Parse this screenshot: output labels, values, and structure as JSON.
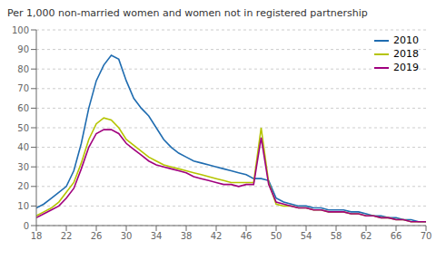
{
  "chart_data": {
    "type": "line",
    "title": "Per 1,000 non-married women and women not in registered partnership",
    "x": [
      18,
      19,
      20,
      21,
      22,
      23,
      24,
      25,
      26,
      27,
      28,
      29,
      30,
      31,
      32,
      33,
      34,
      35,
      36,
      37,
      38,
      39,
      40,
      41,
      42,
      43,
      44,
      45,
      46,
      47,
      48,
      49,
      50,
      51,
      52,
      53,
      54,
      55,
      56,
      57,
      58,
      59,
      60,
      61,
      62,
      63,
      64,
      65,
      66,
      67,
      68,
      69,
      70
    ],
    "series": [
      {
        "name": "2010",
        "color": "#1f6cb0",
        "values": [
          9,
          11,
          14,
          17,
          20,
          28,
          42,
          60,
          74,
          82,
          87,
          85,
          74,
          65,
          60,
          56,
          50,
          44,
          40,
          37,
          35,
          33,
          32,
          31,
          30,
          29,
          28,
          27,
          26,
          24,
          24,
          23,
          14,
          12,
          11,
          10,
          10,
          9,
          9,
          8,
          8,
          8,
          7,
          7,
          6,
          5,
          5,
          4,
          4,
          3,
          3,
          2,
          2
        ]
      },
      {
        "name": "2018",
        "color": "#b5c400",
        "values": [
          5,
          7,
          9,
          12,
          17,
          22,
          32,
          44,
          52,
          55,
          54,
          50,
          44,
          41,
          38,
          35,
          33,
          31,
          30,
          29,
          28,
          27,
          26,
          25,
          24,
          23,
          22,
          22,
          22,
          22,
          50,
          22,
          11,
          10,
          10,
          9,
          9,
          8,
          8,
          7,
          7,
          7,
          6,
          6,
          5,
          5,
          4,
          4,
          3,
          3,
          2,
          2,
          2
        ]
      },
      {
        "name": "2019",
        "color": "#a0007e",
        "values": [
          4,
          6,
          8,
          10,
          14,
          19,
          29,
          40,
          47,
          49,
          49,
          47,
          42,
          39,
          36,
          33,
          31,
          30,
          29,
          28,
          27,
          25,
          24,
          23,
          22,
          21,
          21,
          20,
          21,
          21,
          45,
          21,
          12,
          11,
          10,
          9,
          9,
          8,
          8,
          7,
          7,
          7,
          6,
          6,
          5,
          5,
          4,
          4,
          3,
          3,
          2,
          2,
          2
        ]
      }
    ],
    "xlim": [
      18,
      70
    ],
    "xticks": [
      18,
      22,
      26,
      30,
      34,
      38,
      42,
      46,
      50,
      54,
      58,
      62,
      66,
      70
    ],
    "ylim": [
      0,
      100
    ],
    "yticks": [
      0,
      10,
      20,
      30,
      40,
      50,
      60,
      70,
      80,
      90,
      100
    ],
    "grid": true,
    "legend": "upper right"
  }
}
